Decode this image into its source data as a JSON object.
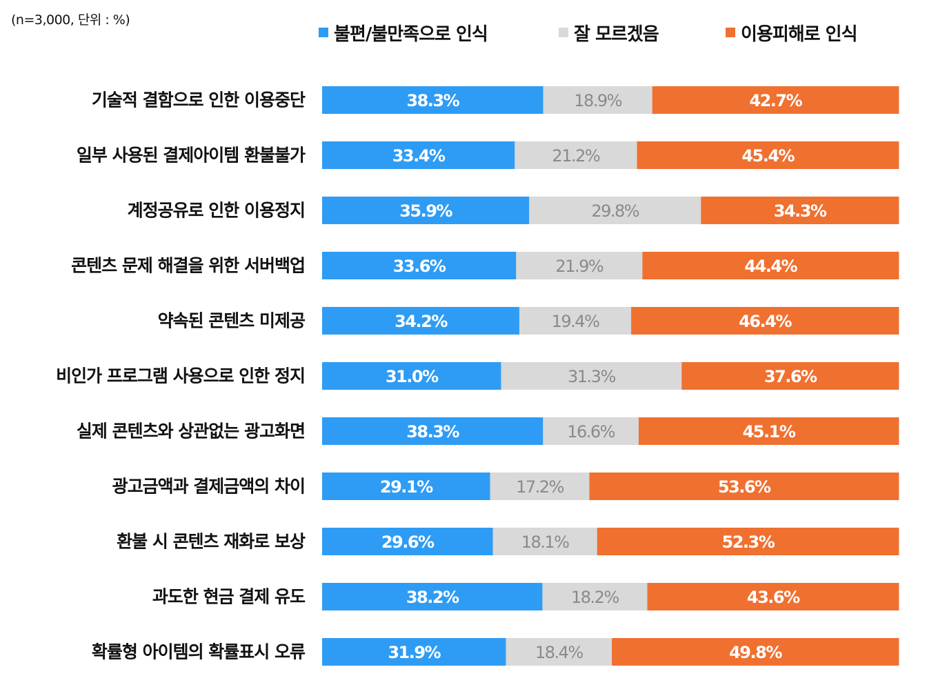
{
  "note": "(n=3,000, 단위 : %)",
  "chart_data": {
    "type": "bar",
    "orientation": "horizontal",
    "stacked": true,
    "unit": "%",
    "xlim": [
      0,
      100
    ],
    "grid": false,
    "legend_position": "top",
    "categories": [
      "기술적 결함으로 인한 이용중단",
      "일부 사용된 결제아이템 환불불가",
      "계정공유로 인한 이용정지",
      "콘텐츠 문제 해결을 위한 서버백업",
      "약속된 콘텐츠 미제공",
      "비인가 프로그램 사용으로 인한 정지",
      "실제 콘텐츠와 상관없는 광고화면",
      "광고금액과 결제금액의 차이",
      "환불 시 콘텐츠 재화로 보상",
      "과도한 현금 결제 유도",
      "확률형 아이템의 확률표시 오류"
    ],
    "series": [
      {
        "name": "불편/불만족으로 인식",
        "color": "#2e9cf4",
        "values": [
          38.3,
          33.4,
          35.9,
          33.6,
          34.2,
          31.0,
          38.3,
          29.1,
          29.6,
          38.2,
          31.9
        ],
        "labels": [
          "38.3%",
          "33.4%",
          "35.9%",
          "33.6%",
          "34.2%",
          "31.0%",
          "38.3%",
          "29.1%",
          "29.6%",
          "38.2%",
          "31.9%"
        ]
      },
      {
        "name": "잘 모르겠음",
        "color": "#d9d9d9",
        "values": [
          18.9,
          21.2,
          29.8,
          21.9,
          19.4,
          31.3,
          16.6,
          17.2,
          18.1,
          18.2,
          18.4
        ],
        "labels": [
          "18.9%",
          "21.2%",
          "29.8%",
          "21.9%",
          "19.4%",
          "31.3%",
          "16.6%",
          "17.2%",
          "18.1%",
          "18.2%",
          "18.4%"
        ]
      },
      {
        "name": "이용피해로 인식",
        "color": "#f07030",
        "values": [
          42.7,
          45.4,
          34.3,
          44.4,
          46.4,
          37.6,
          45.1,
          53.6,
          52.3,
          43.6,
          49.8
        ],
        "labels": [
          "42.7%",
          "45.4%",
          "34.3%",
          "44.4%",
          "46.4%",
          "37.6%",
          "45.1%",
          "53.6%",
          "52.3%",
          "43.6%",
          "49.8%"
        ]
      }
    ]
  }
}
